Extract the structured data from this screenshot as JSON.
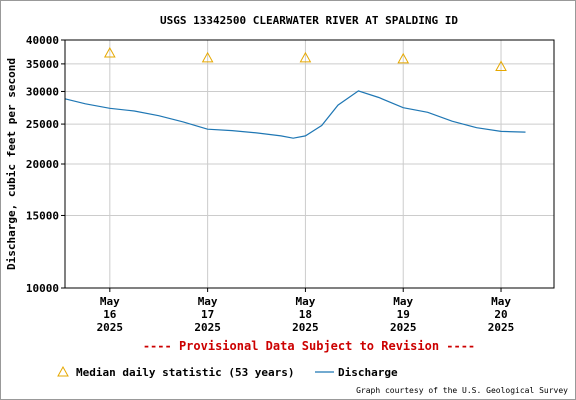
{
  "chart_data": {
    "type": "line",
    "title": "USGS 13342500 CLEARWATER RIVER AT SPALDING ID",
    "ylabel": "Discharge, cubic feet per second",
    "y_scale": "log",
    "ylim": [
      10000,
      40000
    ],
    "y_ticks": [
      10000,
      15000,
      20000,
      25000,
      30000,
      35000,
      40000
    ],
    "y_tick_labels": [
      "10000",
      "15000",
      "20000",
      "25000",
      "30000",
      "35000",
      "40000"
    ],
    "xlim": [
      "2025-05-15 13:00",
      "2025-05-20 13:00"
    ],
    "x_ticks": [
      {
        "date": "2025-05-16",
        "label": [
          "May",
          "16",
          "2025"
        ]
      },
      {
        "date": "2025-05-17",
        "label": [
          "May",
          "17",
          "2025"
        ]
      },
      {
        "date": "2025-05-18",
        "label": [
          "May",
          "18",
          "2025"
        ]
      },
      {
        "date": "2025-05-19",
        "label": [
          "May",
          "19",
          "2025"
        ]
      },
      {
        "date": "2025-05-20",
        "label": [
          "May",
          "20",
          "2025"
        ]
      }
    ],
    "grid": true,
    "series": [
      {
        "name": "Discharge",
        "color": "#1f77b4",
        "points": [
          {
            "x": "2025-05-15 13:00",
            "y": 28800
          },
          {
            "x": "2025-05-15 18:00",
            "y": 28000
          },
          {
            "x": "2025-05-16 00:00",
            "y": 27300
          },
          {
            "x": "2025-05-16 06:00",
            "y": 26900
          },
          {
            "x": "2025-05-16 12:00",
            "y": 26200
          },
          {
            "x": "2025-05-16 18:00",
            "y": 25300
          },
          {
            "x": "2025-05-17 00:00",
            "y": 24300
          },
          {
            "x": "2025-05-17 06:00",
            "y": 24100
          },
          {
            "x": "2025-05-17 12:00",
            "y": 23800
          },
          {
            "x": "2025-05-17 18:00",
            "y": 23400
          },
          {
            "x": "2025-05-17 21:00",
            "y": 23100
          },
          {
            "x": "2025-05-18 00:00",
            "y": 23400
          },
          {
            "x": "2025-05-18 04:00",
            "y": 24800
          },
          {
            "x": "2025-05-18 08:00",
            "y": 27800
          },
          {
            "x": "2025-05-18 13:00",
            "y": 30100
          },
          {
            "x": "2025-05-18 18:00",
            "y": 29000
          },
          {
            "x": "2025-05-19 00:00",
            "y": 27400
          },
          {
            "x": "2025-05-19 06:00",
            "y": 26700
          },
          {
            "x": "2025-05-19 12:00",
            "y": 25400
          },
          {
            "x": "2025-05-19 18:00",
            "y": 24500
          },
          {
            "x": "2025-05-20 00:00",
            "y": 24000
          },
          {
            "x": "2025-05-20 06:00",
            "y": 23900
          }
        ]
      },
      {
        "name": "Median daily statistic (53 years)",
        "color": "#e6a800",
        "marker": "triangle",
        "points": [
          {
            "x": "2025-05-16 00:00",
            "y": 37200
          },
          {
            "x": "2025-05-17 00:00",
            "y": 36200
          },
          {
            "x": "2025-05-18 00:00",
            "y": 36200
          },
          {
            "x": "2025-05-19 00:00",
            "y": 36000
          },
          {
            "x": "2025-05-20 00:00",
            "y": 34500
          }
        ]
      }
    ],
    "legend": "bottom",
    "annotations": [
      "---- Provisional Data Subject to Revision ----",
      "Graph courtesy of the U.S. Geological Survey"
    ]
  }
}
